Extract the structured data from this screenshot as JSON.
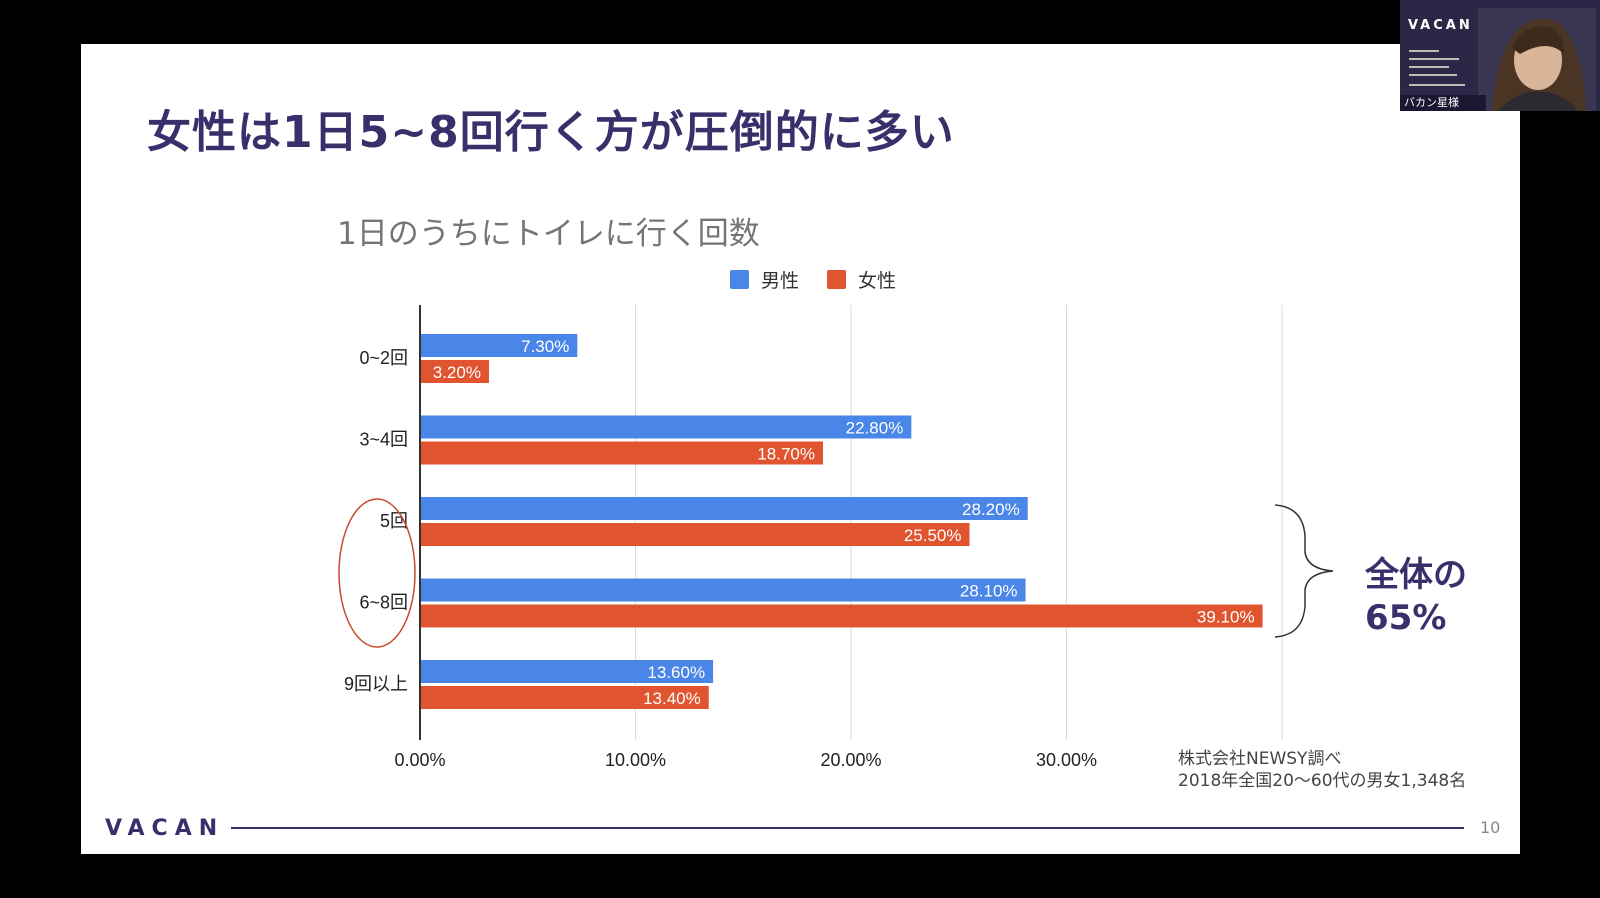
{
  "slide": {
    "title": "女性は1日5~8回行く方が圧倒的に多い",
    "brace_line1": "全体の",
    "brace_line2": "65%",
    "source_line1": "株式会社NEWSY調べ",
    "source_line2": "2018年全国20〜60代の男女1,348名",
    "footer_logo": "VACAN",
    "page_number": "10"
  },
  "webcam": {
    "logo": "VACAN",
    "name_label": "バカン星様"
  },
  "colors": {
    "title": "#3b2f6b",
    "male": "#4a86e8",
    "female": "#e0552f",
    "annotation_circle": "#c9482b"
  },
  "chart_data": {
    "type": "bar",
    "orientation": "horizontal",
    "title": "1日のうちにトイレに行く回数",
    "categories": [
      "0~2回",
      "3~4回",
      "5回",
      "6~8回",
      "9回以上"
    ],
    "series": [
      {
        "name": "男性",
        "values": [
          7.3,
          22.8,
          28.2,
          28.1,
          13.6
        ],
        "labels": [
          "7.30%",
          "22.80%",
          "28.20%",
          "28.10%",
          "13.60%"
        ]
      },
      {
        "name": "女性",
        "values": [
          3.2,
          18.7,
          25.5,
          39.1,
          13.4
        ],
        "labels": [
          "3.20%",
          "18.70%",
          "25.50%",
          "39.10%",
          "13.40%"
        ]
      }
    ],
    "xlim": [
      0,
      40
    ],
    "xticks": [
      "0.00%",
      "10.00%",
      "20.00%",
      "30.00%"
    ],
    "legend_position": "top-center",
    "grid": true
  }
}
